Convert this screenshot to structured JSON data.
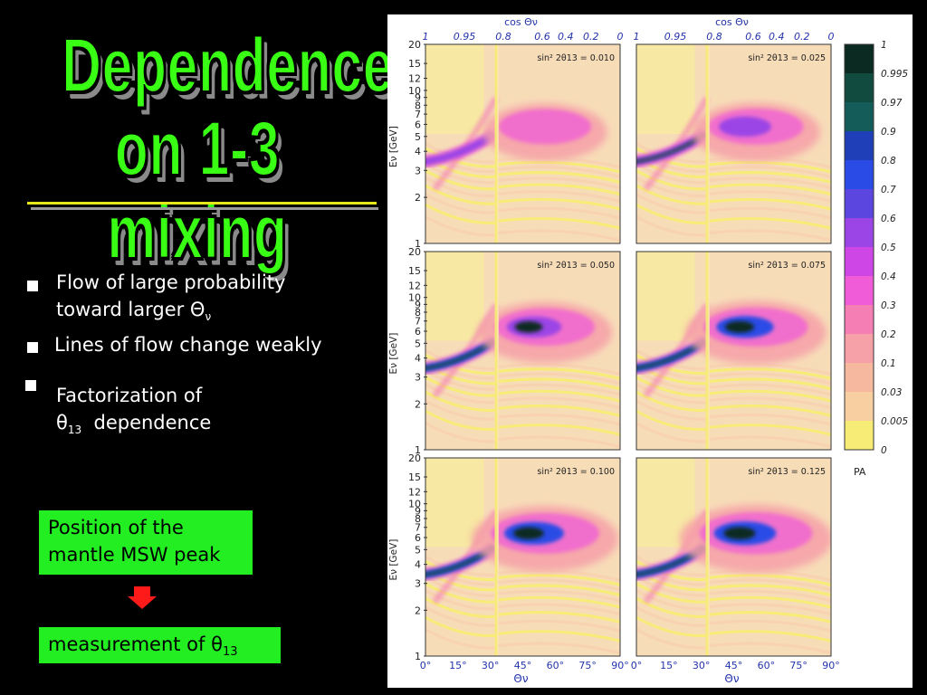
{
  "title": {
    "line1": "Dependence",
    "line2": "on 1-3 mixing"
  },
  "bullets": [
    {
      "text": "Flow of large probability\ntoward  larger Θ",
      "sub": "ν"
    },
    {
      "text": "Lines of flow change weakly"
    },
    {
      "text": "Factorization of\nθ",
      "sub": "13",
      "tail": "  dependence"
    }
  ],
  "box_msw": {
    "text": "Position of the\nmantle MSW peak"
  },
  "box_measure": {
    "text": "measurement of θ",
    "sub": "13"
  },
  "colors": {
    "title": "#39ff14",
    "box": "#22ee22",
    "arrow": "#ff1a1a",
    "background": "#000000"
  },
  "plots": {
    "top_axis_title": "cos Θν",
    "top_axis_ticks": [
      "1",
      "0.95",
      "0.8",
      "0.6",
      "0.4",
      "0.2",
      "0"
    ],
    "bottom_axis_title": "Θν",
    "bottom_axis_ticks": [
      "0°",
      "15°",
      "30°",
      "45°",
      "60°",
      "75°",
      "90°"
    ],
    "y_axis_title": "Eν [GeV]",
    "y_ticks": [
      "1",
      "2",
      "3",
      "4",
      "5",
      "6",
      "7",
      "8",
      "9",
      "10",
      "12",
      "15",
      "20"
    ],
    "panel_labels": [
      "sin² 2θ13 = 0.010",
      "sin² 2θ13 = 0.025",
      "sin² 2θ13 = 0.050",
      "sin² 2θ13 = 0.075",
      "sin² 2θ13 = 0.100",
      "sin² 2θ13 = 0.125"
    ],
    "colorbar_title": "PA",
    "colorbar_ticks": [
      "1",
      "0.995",
      "0.97",
      "0.9",
      "0.8",
      "0.7",
      "0.6",
      "0.5",
      "0.4",
      "0.3",
      "0.2",
      "0.1",
      "0.03",
      "0.005",
      "0"
    ],
    "colorbar_colors": [
      "#0b2a22",
      "#114a3e",
      "#145c5a",
      "#1f3fb8",
      "#2b4be6",
      "#5b46e0",
      "#9b45e6",
      "#cf46e6",
      "#f05cd8",
      "#f57fb5",
      "#f6a0a8",
      "#f6b89f",
      "#f7cfa0",
      "#f7ec75"
    ]
  }
}
